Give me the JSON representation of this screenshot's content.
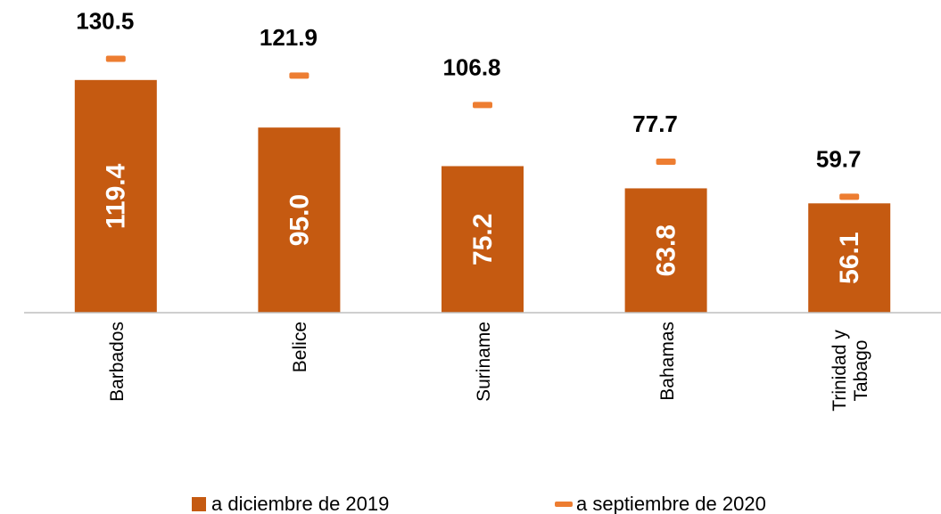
{
  "chart_data": {
    "type": "bar",
    "categories": [
      "Barbados",
      "Belice",
      "Suriname",
      "Bahamas",
      "Trinidad y Tabago"
    ],
    "series": [
      {
        "name": "a diciembre de 2019",
        "color": "#c55a11",
        "values": [
          119.4,
          95.0,
          75.2,
          63.8,
          56.1
        ],
        "value_labels": [
          "119.4",
          "95.0",
          "75.2",
          "63.8",
          "56.1"
        ]
      },
      {
        "name": "a septiembre de 2020",
        "color": "#ed7d31",
        "marker": "dash",
        "values": [
          130.5,
          121.9,
          106.8,
          77.7,
          59.7
        ]
      }
    ],
    "ylim": [
      0,
      160
    ],
    "legend": "bottom"
  }
}
